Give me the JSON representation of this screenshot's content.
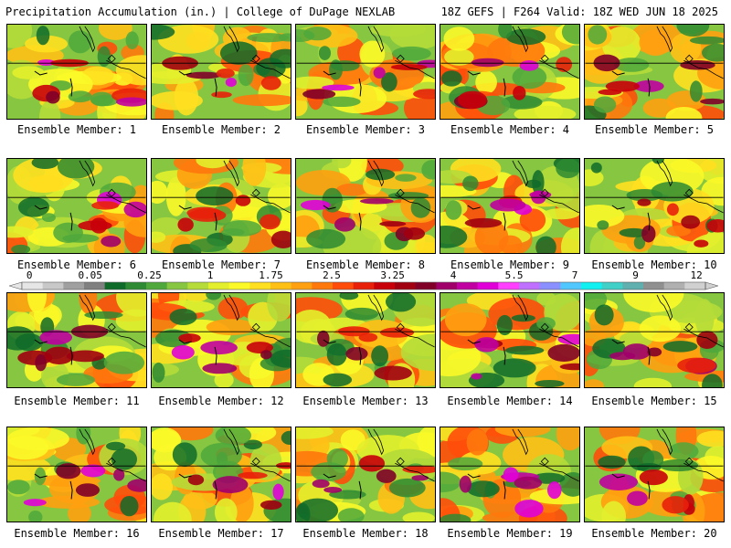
{
  "header": {
    "left": "Precipitation Accumulation (in.) | College of DuPage NEXLAB",
    "right": "18Z GEFS | F264 Valid: 18Z WED JUN 18 2025"
  },
  "colorbar": {
    "tick_labels": [
      "0",
      "0.05",
      "0.25",
      "1",
      "1.75",
      "2.5",
      "3.25",
      "4",
      "5.5",
      "7",
      "9",
      "12"
    ],
    "colors": [
      "#e6e6e6",
      "#c8c8c8",
      "#a0a0a0",
      "#808080",
      "#0f6b2a",
      "#2e8a33",
      "#4fa83c",
      "#86c641",
      "#b5dc39",
      "#e3ef2c",
      "#fbfa28",
      "#ffe020",
      "#ffc016",
      "#ffa010",
      "#ff780c",
      "#ff4c0a",
      "#e8200a",
      "#c8000a",
      "#a0000f",
      "#800028",
      "#a0006a",
      "#c000a0",
      "#e000d8",
      "#ff40ff",
      "#c070ff",
      "#8a90ff",
      "#50c8ff",
      "#10f0f0",
      "#40d0c8",
      "#60b0b0",
      "#909090",
      "#b0b0b0",
      "#d0d0d0"
    ]
  },
  "panels": [
    {
      "label": "Ensemble Member: 1"
    },
    {
      "label": "Ensemble Member: 2"
    },
    {
      "label": "Ensemble Member: 3"
    },
    {
      "label": "Ensemble Member: 4"
    },
    {
      "label": "Ensemble Member: 5"
    },
    {
      "label": "Ensemble Member: 6"
    },
    {
      "label": "Ensemble Member: 7"
    },
    {
      "label": "Ensemble Member: 8"
    },
    {
      "label": "Ensemble Member: 9"
    },
    {
      "label": "Ensemble Member: 10"
    },
    {
      "label": "Ensemble Member: 11"
    },
    {
      "label": "Ensemble Member: 12"
    },
    {
      "label": "Ensemble Member: 13"
    },
    {
      "label": "Ensemble Member: 14"
    },
    {
      "label": "Ensemble Member: 15"
    },
    {
      "label": "Ensemble Member: 16"
    },
    {
      "label": "Ensemble Member: 17"
    },
    {
      "label": "Ensemble Member: 18"
    },
    {
      "label": "Ensemble Member: 19"
    },
    {
      "label": "Ensemble Member: 20"
    }
  ]
}
